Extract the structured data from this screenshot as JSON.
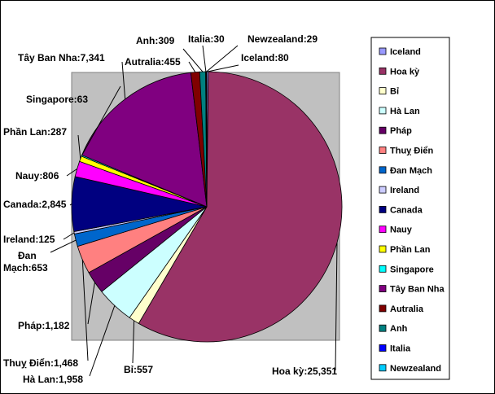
{
  "chart_data": {
    "type": "pie",
    "title": "",
    "legend_position": "right",
    "plot_background": "#c0c0c0",
    "start_angle_deg": 0,
    "direction": "clockwise",
    "series": [
      {
        "name": "Iceland",
        "value": 80,
        "label": "Iceland:80",
        "color": "#9999ff"
      },
      {
        "name": "Hoa kỳ",
        "value": 25351,
        "label": "Hoa kỳ:25,351",
        "color": "#993366"
      },
      {
        "name": "Bỉ",
        "value": 557,
        "label": "Bỉ:557",
        "color": "#ffffcc"
      },
      {
        "name": "Hà Lan",
        "value": 1958,
        "label": "Hà Lan:1,958",
        "color": "#ccffff"
      },
      {
        "name": "Pháp",
        "value": 1182,
        "label": "Pháp:1,182",
        "color": "#660066"
      },
      {
        "name": "Thuỵ Điển",
        "value": 1468,
        "label": "Thuỵ Điển:1,468",
        "color": "#ff8080"
      },
      {
        "name": "Đan Mạch",
        "value": 653,
        "label": "Đan Mạch:653",
        "color": "#0066cc"
      },
      {
        "name": "Ireland",
        "value": 125,
        "label": "Ireland:125",
        "color": "#ccccff"
      },
      {
        "name": "Canada",
        "value": 2845,
        "label": "Canada:2,845",
        "color": "#000080"
      },
      {
        "name": "Nauy",
        "value": 806,
        "label": "Nauy:806",
        "color": "#ff00ff"
      },
      {
        "name": "Phần Lan",
        "value": 287,
        "label": "Phần Lan:287",
        "color": "#ffff00"
      },
      {
        "name": "Singapore",
        "value": 63,
        "label": "Singapore:63",
        "color": "#00ffff"
      },
      {
        "name": "Tây Ban Nha",
        "value": 7341,
        "label": "Tây Ban Nha:7,341",
        "color": "#800080"
      },
      {
        "name": "Autralia",
        "value": 455,
        "label": "Autralia:455",
        "color": "#800000"
      },
      {
        "name": "Anh",
        "value": 309,
        "label": "Anh:309",
        "color": "#008080"
      },
      {
        "name": "Italia",
        "value": 30,
        "label": "Italia:30",
        "color": "#0000ff"
      },
      {
        "name": "Newzealand",
        "value": 29,
        "label": "Newzealand:29",
        "color": "#00ccff"
      }
    ]
  }
}
